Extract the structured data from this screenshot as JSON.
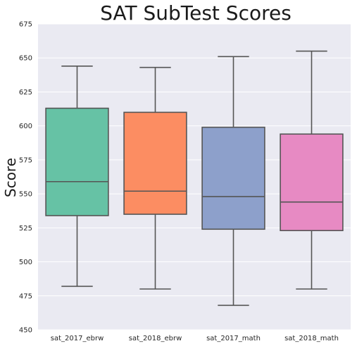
{
  "chart_data": {
    "type": "box",
    "title": "SAT SubTest Scores",
    "xlabel": "",
    "ylabel": "Score",
    "ylim": [
      450,
      675
    ],
    "yticks": [
      450,
      475,
      500,
      525,
      550,
      575,
      600,
      625,
      650,
      675
    ],
    "grid": true,
    "categories": [
      "sat_2017_ebrw",
      "sat_2018_ebrw",
      "sat_2017_math",
      "sat_2018_math"
    ],
    "boxes": [
      {
        "category": "sat_2017_ebrw",
        "min": 482,
        "q1": 534,
        "median": 559,
        "q3": 613,
        "max": 644,
        "color": "#66c2a5"
      },
      {
        "category": "sat_2018_ebrw",
        "min": 480,
        "q1": 535,
        "median": 552,
        "q3": 610,
        "max": 643,
        "color": "#fc8d62"
      },
      {
        "category": "sat_2017_math",
        "min": 468,
        "q1": 524,
        "median": 548,
        "q3": 599,
        "max": 651,
        "color": "#8da0cb"
      },
      {
        "category": "sat_2018_math",
        "min": 480,
        "q1": 523,
        "median": 544,
        "q3": 594,
        "max": 655,
        "color": "#e78ac3"
      }
    ],
    "colors": {
      "background": "#eaeaf2",
      "grid": "#ffffff",
      "line": "#555555"
    }
  }
}
